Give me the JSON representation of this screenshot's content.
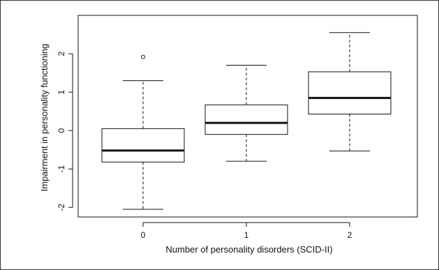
{
  "chart_data": {
    "type": "boxplot",
    "xlabel": "Number of personality disorders (SCID-II)",
    "ylabel": "Impairment in personality functioning",
    "categories": [
      "0",
      "1",
      "2"
    ],
    "ylim": [
      -2.25,
      3.0
    ],
    "yticks": [
      -2,
      -1,
      0,
      1,
      2
    ],
    "ytick_labels": [
      "-2",
      "-1",
      "0",
      "1",
      "2"
    ],
    "grid": false,
    "boxes": [
      {
        "category": "0",
        "whisker_low": -2.05,
        "q1": -0.82,
        "median": -0.52,
        "q3": 0.05,
        "whisker_high": 1.3,
        "outliers": [
          1.92
        ]
      },
      {
        "category": "1",
        "whisker_low": -0.8,
        "q1": -0.1,
        "median": 0.2,
        "q3": 0.67,
        "whisker_high": 1.7,
        "outliers": []
      },
      {
        "category": "2",
        "whisker_low": -0.53,
        "q1": 0.43,
        "median": 0.85,
        "q3": 1.53,
        "whisker_high": 2.55,
        "outliers": []
      }
    ],
    "colors": {
      "line": "#111111",
      "box_fill": "#ffffff"
    }
  }
}
